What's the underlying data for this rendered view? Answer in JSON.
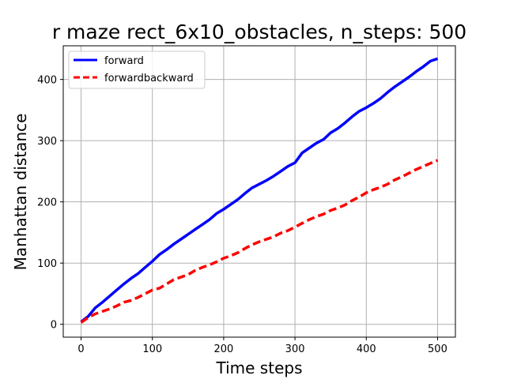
{
  "chart_data": {
    "type": "line",
    "title": "r maze rect_6x10_obstacles, n_steps: 500",
    "xlabel": "Time steps",
    "ylabel": "Manhattan distance",
    "xlim": [
      -25,
      525
    ],
    "ylim": [
      -21,
      455
    ],
    "xticks": [
      0,
      100,
      200,
      300,
      400,
      500
    ],
    "yticks": [
      0,
      100,
      200,
      300,
      400
    ],
    "grid": true,
    "legend": "top-left",
    "series": [
      {
        "name": "forward",
        "color": "#0000ff",
        "style": "solid",
        "x": [
          0,
          10,
          20,
          30,
          40,
          50,
          60,
          70,
          80,
          90,
          100,
          110,
          120,
          130,
          140,
          150,
          160,
          170,
          180,
          190,
          200,
          210,
          220,
          230,
          240,
          250,
          260,
          270,
          280,
          290,
          300,
          310,
          320,
          330,
          340,
          350,
          360,
          370,
          380,
          390,
          400,
          410,
          420,
          430,
          440,
          450,
          460,
          470,
          480,
          490,
          500
        ],
        "y": [
          4,
          13,
          27,
          36,
          46,
          56,
          66,
          75,
          83,
          93,
          103,
          114,
          122,
          131,
          139,
          147,
          155,
          163,
          171,
          181,
          188,
          196,
          204,
          214,
          223,
          229,
          235,
          242,
          250,
          258,
          264,
          280,
          288,
          296,
          302,
          313,
          320,
          329,
          339,
          348,
          354,
          361,
          369,
          379,
          388,
          396,
          404,
          413,
          421,
          430,
          434
        ]
      },
      {
        "name": "forwardbackward",
        "color": "#ff0000",
        "style": "dashed",
        "x": [
          0,
          10,
          20,
          30,
          40,
          50,
          60,
          70,
          80,
          90,
          100,
          110,
          120,
          130,
          140,
          150,
          160,
          170,
          180,
          190,
          200,
          210,
          220,
          230,
          240,
          250,
          260,
          270,
          280,
          290,
          300,
          310,
          320,
          330,
          340,
          350,
          360,
          370,
          380,
          390,
          400,
          410,
          420,
          430,
          440,
          450,
          460,
          470,
          480,
          490,
          500
        ],
        "y": [
          3,
          11,
          17,
          21,
          25,
          30,
          36,
          39,
          44,
          50,
          56,
          59,
          66,
          73,
          77,
          81,
          88,
          93,
          97,
          102,
          108,
          112,
          117,
          124,
          130,
          135,
          139,
          143,
          149,
          153,
          159,
          165,
          171,
          176,
          180,
          186,
          190,
          195,
          202,
          208,
          215,
          220,
          224,
          229,
          236,
          241,
          247,
          253,
          258,
          263,
          268
        ]
      }
    ]
  }
}
